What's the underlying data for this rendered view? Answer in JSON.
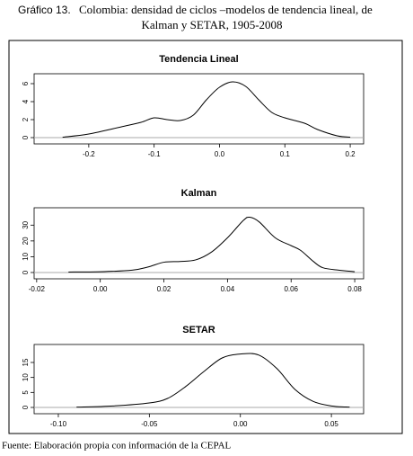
{
  "caption_label": "Gráfico 13.",
  "caption": [
    "Colombia: densidad de ciclos –modelos de tendencia lineal, de",
    "Kalman y SETAR, 1905-2008"
  ],
  "source": "Fuente: Elaboración propia con información de la CEPAL",
  "chart_data": [
    {
      "type": "line",
      "title": "Tendencia Lineal",
      "color": "#000000",
      "x": [
        -0.24,
        -0.2,
        -0.15,
        -0.12,
        -0.1,
        -0.08,
        -0.06,
        -0.04,
        -0.02,
        0.0,
        0.02,
        0.04,
        0.06,
        0.08,
        0.1,
        0.13,
        0.15,
        0.18,
        0.2
      ],
      "values": [
        0.05,
        0.4,
        1.2,
        1.7,
        2.2,
        2.0,
        1.9,
        2.5,
        4.2,
        5.6,
        6.2,
        5.7,
        4.2,
        2.8,
        2.2,
        1.6,
        0.9,
        0.2,
        0.05
      ],
      "xlim": [
        -0.2836,
        0.2205
      ],
      "ylim": [
        -0.7,
        7.1
      ],
      "xticks": [
        -0.2,
        -0.1,
        {
          "value": 0,
          "label": "0.0"
        },
        0.1,
        0.2
      ],
      "yticks": [
        0,
        2,
        4,
        6
      ]
    },
    {
      "type": "line",
      "title": "Kalman",
      "color": "#000000",
      "x": [
        -0.01,
        0.0,
        0.01,
        0.015,
        0.02,
        0.025,
        0.03,
        0.035,
        0.04,
        0.045,
        0.047,
        0.05,
        0.055,
        0.06,
        0.063,
        0.067,
        0.07,
        0.075,
        0.08
      ],
      "values": [
        0.3,
        0.5,
        1.5,
        3.5,
        6.5,
        7,
        8,
        13,
        22,
        33,
        35,
        32,
        22,
        17,
        14,
        7,
        3,
        1.5,
        0.5
      ],
      "xlim": [
        -0.0208,
        0.0828
      ],
      "ylim": [
        -4,
        41
      ],
      "xticks": [
        -0.02,
        {
          "value": 0,
          "label": "0.00"
        },
        0.02,
        0.04,
        0.06,
        0.08
      ],
      "yticks": [
        0,
        10,
        20,
        30
      ]
    },
    {
      "type": "line",
      "title": "SETAR",
      "color": "#000000",
      "x": [
        -0.09,
        -0.07,
        -0.05,
        -0.04,
        -0.03,
        -0.02,
        -0.01,
        0.0,
        0.01,
        0.02,
        0.03,
        0.04,
        0.05,
        0.06
      ],
      "values": [
        0.1,
        0.5,
        1.5,
        3,
        7,
        12,
        16.5,
        17.8,
        17.5,
        13,
        6,
        2,
        0.5,
        0.1
      ],
      "xlim": [
        -0.1133,
        0.0677
      ],
      "ylim": [
        -2.1,
        21
      ],
      "xticks": [
        {
          "value": -0.1,
          "label": "-0.10"
        },
        -0.05,
        {
          "value": 0,
          "label": "0.00"
        },
        0.05
      ],
      "yticks": [
        0,
        5,
        10,
        15
      ]
    }
  ]
}
